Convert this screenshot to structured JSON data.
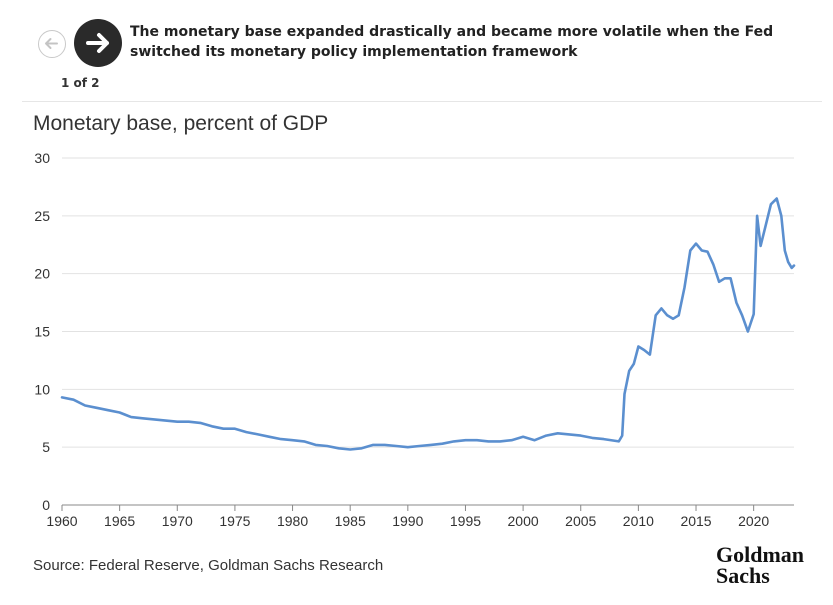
{
  "header": {
    "headline": "The monetary base expanded drastically and became more volatile when the Fed switched its monetary policy implementation framework",
    "pager": "1 of 2",
    "prev_icon": "arrow-left-icon",
    "next_icon": "arrow-right-icon"
  },
  "footer": {
    "source": "Source: Federal Reserve, Goldman Sachs Research",
    "logo_line1": "Goldman",
    "logo_line2": "Sachs"
  },
  "colors": {
    "line": "#5b8fcf",
    "grid": "#e2e2e2",
    "axis": "#888888"
  },
  "chart_data": {
    "type": "line",
    "title": "Monetary base, percent of GDP",
    "xlim": [
      1960,
      2023.5
    ],
    "ylim": [
      0,
      30
    ],
    "xticks": [
      1960,
      1965,
      1970,
      1975,
      1980,
      1985,
      1990,
      1995,
      2000,
      2005,
      2010,
      2015,
      2020
    ],
    "yticks": [
      0,
      5,
      10,
      15,
      20,
      25,
      30
    ],
    "grid": true,
    "legend": "none",
    "series": [
      {
        "values": [
          [
            1960,
            9.3
          ],
          [
            1961,
            9.1
          ],
          [
            1962,
            8.6
          ],
          [
            1963,
            8.4
          ],
          [
            1964,
            8.2
          ],
          [
            1965,
            8.0
          ],
          [
            1966,
            7.6
          ],
          [
            1967,
            7.5
          ],
          [
            1968,
            7.4
          ],
          [
            1969,
            7.3
          ],
          [
            1970,
            7.2
          ],
          [
            1971,
            7.2
          ],
          [
            1972,
            7.1
          ],
          [
            1973,
            6.8
          ],
          [
            1974,
            6.6
          ],
          [
            1975,
            6.6
          ],
          [
            1976,
            6.3
          ],
          [
            1977,
            6.1
          ],
          [
            1978,
            5.9
          ],
          [
            1979,
            5.7
          ],
          [
            1980,
            5.6
          ],
          [
            1981,
            5.5
          ],
          [
            1982,
            5.2
          ],
          [
            1983,
            5.1
          ],
          [
            1984,
            4.9
          ],
          [
            1985,
            4.8
          ],
          [
            1986,
            4.9
          ],
          [
            1987,
            5.2
          ],
          [
            1988,
            5.2
          ],
          [
            1989,
            5.1
          ],
          [
            1990,
            5.0
          ],
          [
            1991,
            5.1
          ],
          [
            1992,
            5.2
          ],
          [
            1993,
            5.3
          ],
          [
            1994,
            5.5
          ],
          [
            1995,
            5.6
          ],
          [
            1996,
            5.6
          ],
          [
            1997,
            5.5
          ],
          [
            1998,
            5.5
          ],
          [
            1999,
            5.6
          ],
          [
            2000,
            5.9
          ],
          [
            2001,
            5.6
          ],
          [
            2002,
            6.0
          ],
          [
            2003,
            6.2
          ],
          [
            2004,
            6.1
          ],
          [
            2005,
            6.0
          ],
          [
            2006,
            5.8
          ],
          [
            2007,
            5.7
          ],
          [
            2008.3,
            5.5
          ],
          [
            2008.6,
            6.0
          ],
          [
            2008.8,
            9.6
          ],
          [
            2009.2,
            11.6
          ],
          [
            2009.6,
            12.2
          ],
          [
            2010,
            13.7
          ],
          [
            2010.5,
            13.4
          ],
          [
            2011,
            13.0
          ],
          [
            2011.5,
            16.4
          ],
          [
            2012,
            17.0
          ],
          [
            2012.5,
            16.4
          ],
          [
            2013,
            16.1
          ],
          [
            2013.5,
            16.4
          ],
          [
            2014,
            18.8
          ],
          [
            2014.5,
            22.0
          ],
          [
            2015,
            22.6
          ],
          [
            2015.5,
            22.0
          ],
          [
            2016,
            21.9
          ],
          [
            2016.5,
            20.8
          ],
          [
            2017,
            19.3
          ],
          [
            2017.5,
            19.6
          ],
          [
            2018,
            19.6
          ],
          [
            2018.5,
            17.5
          ],
          [
            2019,
            16.4
          ],
          [
            2019.5,
            15.0
          ],
          [
            2020.0,
            16.5
          ],
          [
            2020.3,
            25.0
          ],
          [
            2020.6,
            22.4
          ],
          [
            2021,
            24.0
          ],
          [
            2021.5,
            26.0
          ],
          [
            2022,
            26.5
          ],
          [
            2022.4,
            25.0
          ],
          [
            2022.7,
            22.0
          ],
          [
            2023,
            21.0
          ],
          [
            2023.3,
            20.5
          ],
          [
            2023.5,
            20.7
          ]
        ]
      }
    ]
  }
}
